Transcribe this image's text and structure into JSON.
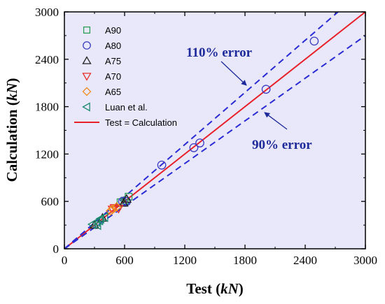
{
  "chart_data": {
    "type": "scatter",
    "xlabel_main": "Test (",
    "xlabel_unit": "kN",
    "xlabel_close": ")",
    "ylabel_main": "Calculation (",
    "ylabel_unit": "kN",
    "ylabel_close": ")",
    "xlim": [
      0,
      3000
    ],
    "ylim": [
      0,
      3000
    ],
    "xticks": [
      "0",
      "600",
      "1200",
      "1800",
      "2400",
      "3000"
    ],
    "yticks": [
      "0",
      "600",
      "1200",
      "1800",
      "2400",
      "3000"
    ],
    "grid": false,
    "legend_position": "top-left",
    "series": [
      {
        "name": "A90",
        "marker": "square",
        "color": "#2ca05a",
        "points": [
          [
            560,
            590
          ],
          [
            640,
            660
          ],
          [
            600,
            610
          ]
        ]
      },
      {
        "name": "A80",
        "marker": "circle",
        "color": "#3b3bc0",
        "points": [
          [
            580,
            600
          ],
          [
            970,
            1060
          ],
          [
            1290,
            1280
          ],
          [
            1350,
            1340
          ],
          [
            2010,
            2020
          ],
          [
            2490,
            2630
          ],
          [
            620,
            600
          ]
        ]
      },
      {
        "name": "A75",
        "marker": "triangle-up",
        "color": "#222222",
        "points": [
          [
            300,
            300
          ],
          [
            380,
            390
          ],
          [
            590,
            580
          ],
          [
            620,
            630
          ]
        ]
      },
      {
        "name": "A70",
        "marker": "triangle-down",
        "color": "#e8312a",
        "points": [
          [
            500,
            520
          ],
          [
            480,
            500
          ],
          [
            540,
            510
          ]
        ]
      },
      {
        "name": "A65",
        "marker": "diamond",
        "color": "#f28c1e",
        "points": [
          [
            480,
            500
          ],
          [
            520,
            530
          ],
          [
            460,
            480
          ]
        ]
      },
      {
        "name": "Luan et al.",
        "marker": "triangle-left",
        "color": "#1c8a6e",
        "points": [
          [
            280,
            310
          ],
          [
            320,
            340
          ],
          [
            360,
            380
          ],
          [
            400,
            400
          ],
          [
            330,
            300
          ],
          [
            350,
            360
          ]
        ]
      }
    ],
    "lines": [
      {
        "name": "Test = Calculation",
        "style": "solid",
        "color": "#e8202a",
        "slope": 1.0
      },
      {
        "name": "",
        "style": "dashed",
        "color": "#2b2bd6",
        "slope": 1.1
      },
      {
        "name": "",
        "style": "dashed",
        "color": "#2b2bd6",
        "slope": 0.9
      }
    ],
    "annotations": [
      {
        "text": "110% error",
        "color": "#1f2a9a"
      },
      {
        "text": "90% error",
        "color": "#1f2a9a"
      }
    ],
    "colors": {
      "plot_background": "#e8e8fa",
      "axes": "#000000"
    }
  }
}
